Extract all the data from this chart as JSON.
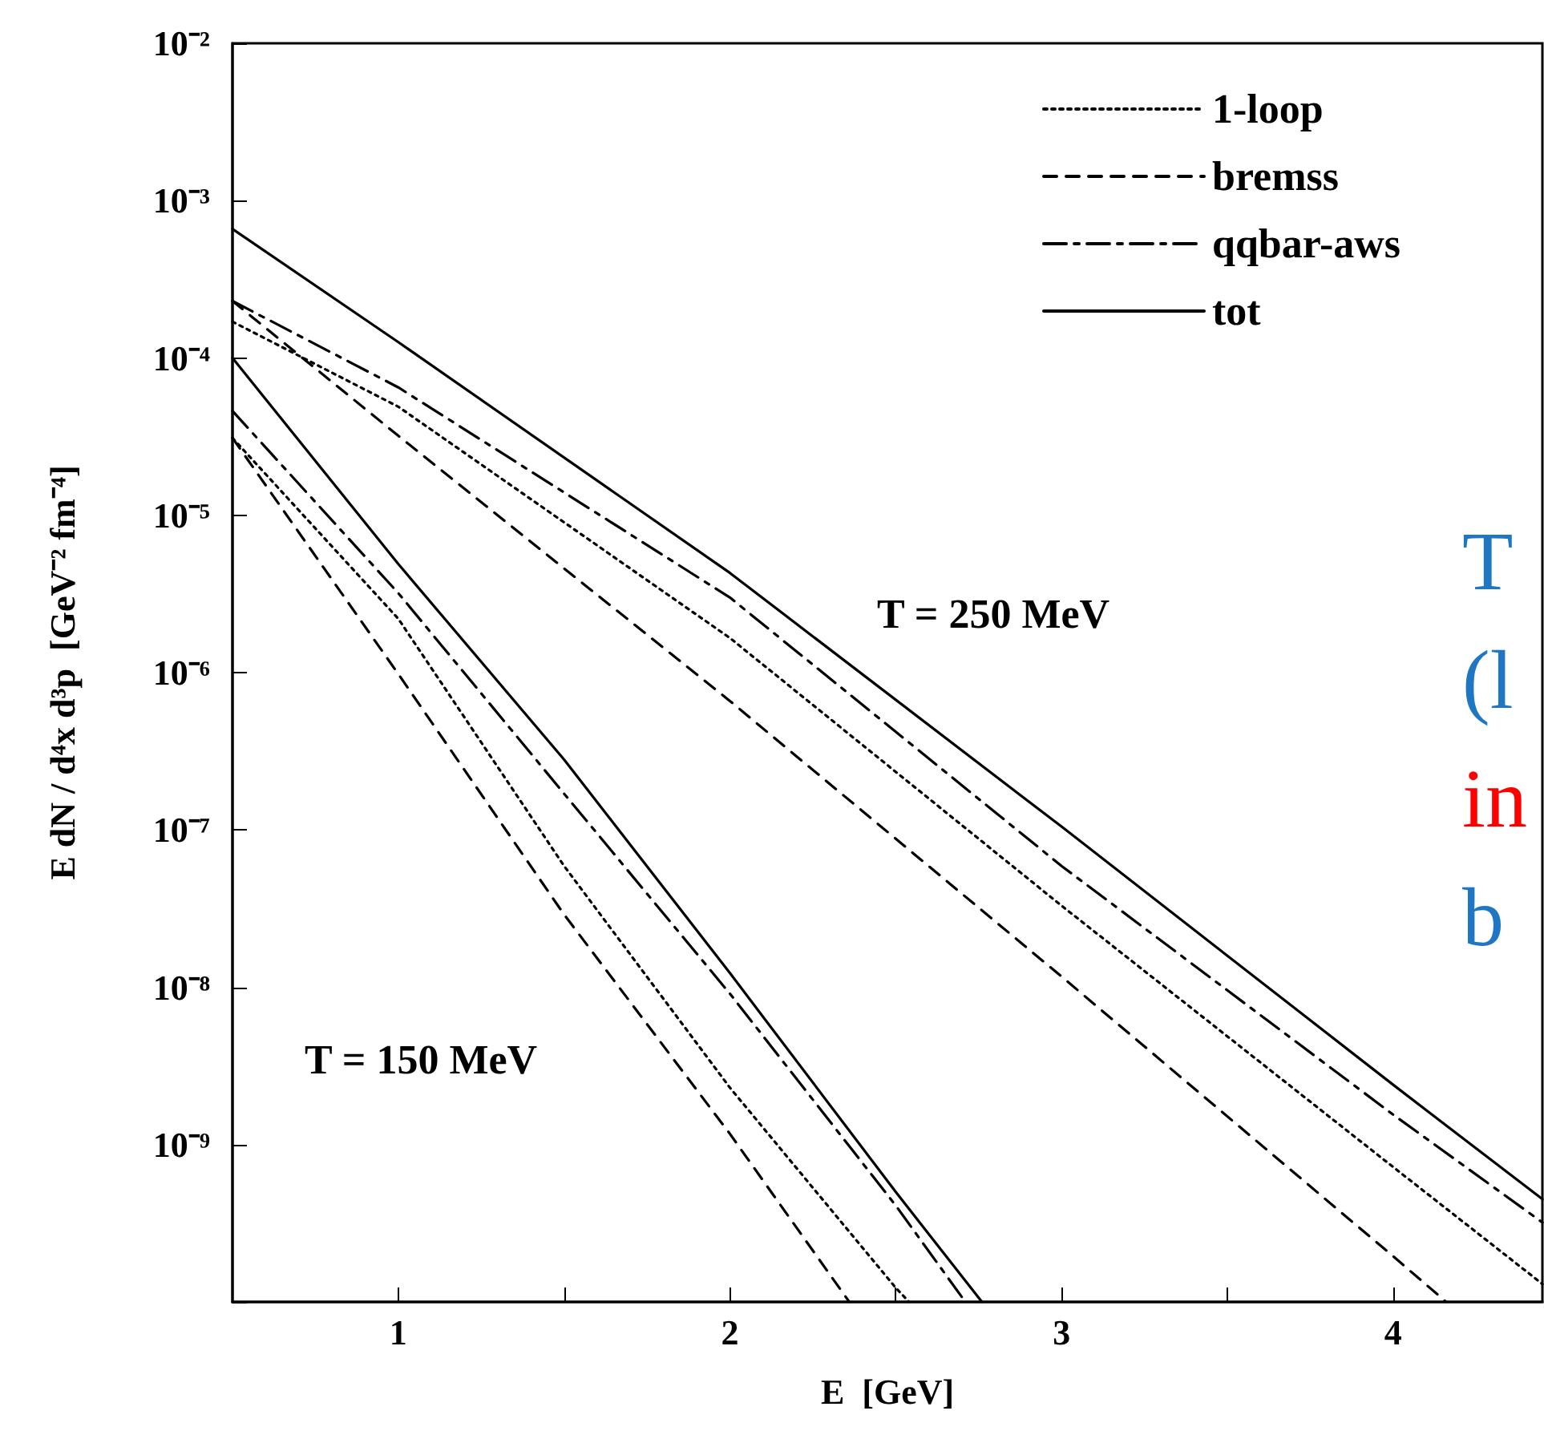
{
  "chart_data": {
    "type": "line",
    "xlabel": "E  [GeV]",
    "ylabel": "E dN / d⁴x d³p  [GeV⁻² fm⁻⁴]",
    "log": "y",
    "xlim": [
      0.5,
      4.45
    ],
    "ylim": [
      1e-10,
      0.01
    ],
    "xticks": [
      1,
      {
        "value": 1.5,
        "label": null
      },
      2,
      {
        "value": 2.5,
        "label": null
      },
      3,
      {
        "value": 3.5,
        "label": null
      },
      4
    ],
    "yticks": [
      {
        "value": 1e-10,
        "label": null
      },
      {
        "value": 1e-09,
        "label": "10⁻⁹"
      },
      {
        "value": 1e-08,
        "label": "10⁻⁸"
      },
      {
        "value": 1e-07,
        "label": "10⁻⁷"
      },
      {
        "value": 1e-06,
        "label": "10⁻⁶"
      },
      {
        "value": 1e-05,
        "label": "10⁻⁵"
      },
      {
        "value": 0.0001,
        "label": "10⁻⁴"
      },
      {
        "value": 0.001,
        "label": "10⁻³"
      },
      {
        "value": 0.01,
        "label": "10⁻²"
      }
    ],
    "grid": false,
    "legend": "top right",
    "marker": "none",
    "series": [
      {
        "name": "1-loop",
        "color": "#000000",
        "line_style": "dotted",
        "x": [
          0.5,
          1,
          2,
          3,
          4,
          4.45
        ],
        "values": [
          0.00017,
          4.9e-05,
          1.66e-06,
          3.3e-08,
          7.2e-10,
          1.3e-10
        ]
      },
      {
        "name": "bremss",
        "color": "#000000",
        "line_style": "dashed",
        "x": [
          0.5,
          1,
          2,
          3,
          4,
          4.16
        ],
        "values": [
          0.00023,
          3.2e-05,
          6.6e-07,
          1.17e-08,
          1.95e-10,
          1e-10
        ]
      },
      {
        "name": "qqbar-aws",
        "color": "#000000",
        "line_style": "dashdot",
        "x": [
          0.5,
          1,
          2,
          3,
          4,
          4.45
        ],
        "values": [
          0.00023,
          6.5e-05,
          3e-06,
          5.9e-08,
          1.55e-09,
          3.2e-10
        ]
      },
      {
        "name": "tot",
        "color": "#000000",
        "line_style": "solid",
        "x": [
          0.5,
          1,
          2,
          3,
          4,
          4.45
        ],
        "values": [
          0.00066,
          0.000126,
          4.3e-06,
          1.05e-07,
          2.4e-09,
          4.5e-10
        ]
      },
      {
        "color": "#000000",
        "line_style": "dotted",
        "x": [
          0.5,
          1,
          1.5,
          2,
          2.5,
          2.54
        ],
        "values": [
          3.1e-05,
          2.2e-06,
          5.9e-08,
          2.3e-09,
          1.23e-10,
          1e-10
        ]
      },
      {
        "color": "#000000",
        "line_style": "dashed",
        "x": [
          0.5,
          1,
          1.5,
          2,
          2.36
        ],
        "values": [
          3.1e-05,
          9.8e-07,
          2.9e-08,
          1.17e-09,
          1e-10
        ]
      },
      {
        "color": "#000000",
        "line_style": "dashdot",
        "x": [
          0.5,
          1,
          1.5,
          2,
          2.5,
          2.71
        ],
        "values": [
          4.6e-05,
          3.2e-06,
          1.7e-07,
          9.1e-09,
          4.1e-10,
          1e-10
        ]
      },
      {
        "color": "#000000",
        "line_style": "solid",
        "x": [
          0.5,
          1,
          1.5,
          2,
          2.5,
          2.76
        ],
        "values": [
          0.0001,
          4.9e-06,
          2.8e-07,
          1.23e-08,
          5e-10,
          1e-10
        ]
      }
    ],
    "annotations": [
      "T = 250 MeV",
      "T = 150 MeV",
      "T",
      "(l",
      "in",
      "b"
    ]
  }
}
